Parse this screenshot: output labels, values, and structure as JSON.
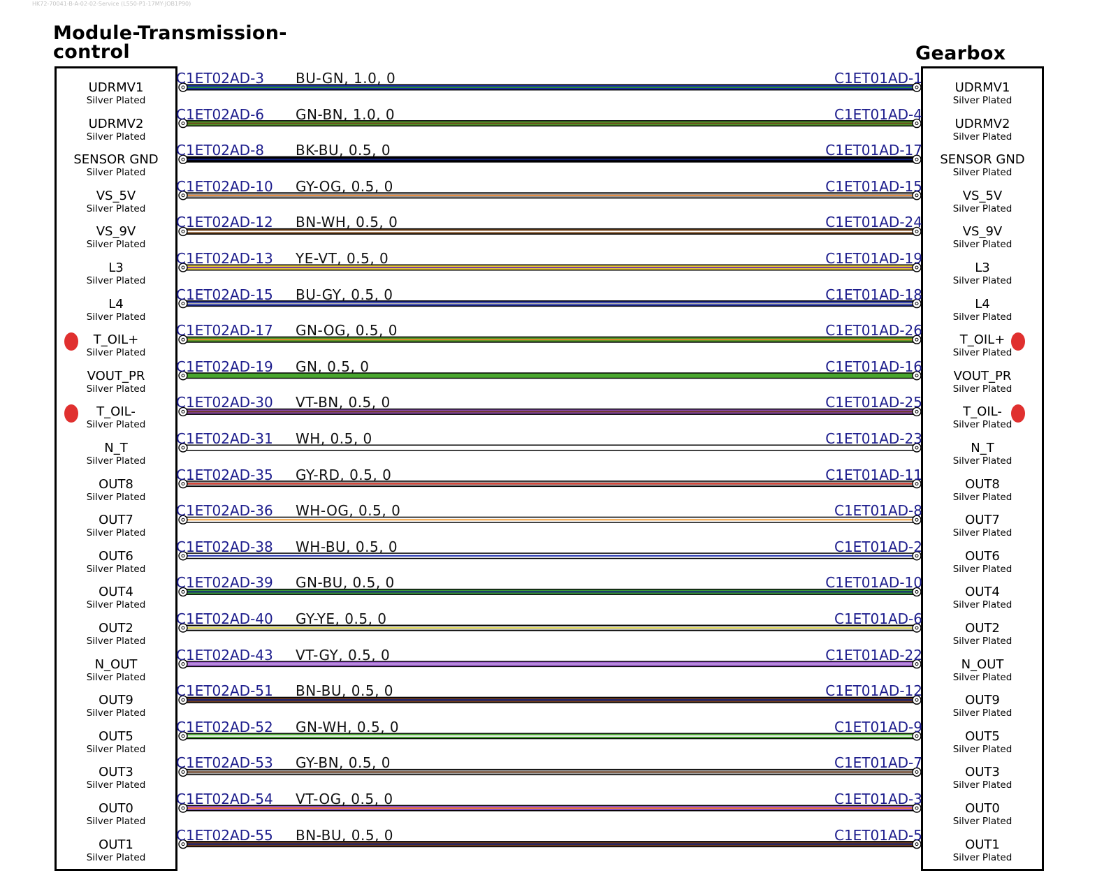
{
  "doc_header": "HK72-70041-B-A-02-02-Service (L550-P1-17MY-JOB1P90)",
  "left_connector": {
    "title": "Module-Transmission-control"
  },
  "right_connector": {
    "title": "Gearbox"
  },
  "plating": "Silver Plated",
  "wires": [
    {
      "pin": "UDRMV1",
      "left_cavity": "C1ET02AD-3",
      "spec": "BU-GN,  1.0,  0",
      "right_cavity": "C1ET01AD-1",
      "colors": [
        "#1a2ea0",
        "#2a8a3a"
      ],
      "stripe": "#2a8a3a"
    },
    {
      "pin": "UDRMV2",
      "left_cavity": "C1ET02AD-6",
      "spec": "GN-BN,  1.0,  0",
      "right_cavity": "C1ET01AD-4",
      "colors": [
        "#4f9a2a",
        "#6b4a1e"
      ],
      "stripe": "#6b4a1e"
    },
    {
      "pin": "SENSOR GND",
      "left_cavity": "C1ET02AD-8",
      "spec": "BK-BU,  0.5,  0",
      "right_cavity": "C1ET01AD-17",
      "colors": [
        "#000000",
        "#13207a"
      ],
      "stripe": "#13207a"
    },
    {
      "pin": "VS_5V",
      "left_cavity": "C1ET02AD-10",
      "spec": "GY-OG,  0.5,  0",
      "right_cavity": "C1ET01AD-15",
      "colors": [
        "#9a9a9a",
        "#e98a3a"
      ],
      "stripe": "#e98a3a"
    },
    {
      "pin": "VS_9V",
      "left_cavity": "C1ET02AD-12",
      "spec": "BN-WH,  0.5,  0",
      "right_cavity": "C1ET01AD-24",
      "colors": [
        "#7a4a1e",
        "#ffffff"
      ],
      "stripe": "#ffffff"
    },
    {
      "pin": "L3",
      "left_cavity": "C1ET02AD-13",
      "spec": "YE-VT,  0.5,  0",
      "right_cavity": "C1ET01AD-19",
      "colors": [
        "#e6c93a",
        "#7a3aa0"
      ],
      "stripe": "#7a3aa0"
    },
    {
      "pin": "L4",
      "left_cavity": "C1ET02AD-15",
      "spec": "BU-GY,  0.5,  0",
      "right_cavity": "C1ET01AD-18",
      "colors": [
        "#2030b0",
        "#b0b0b0"
      ],
      "stripe": "#b0b0b0"
    },
    {
      "pin": "T_OIL+",
      "left_cavity": "C1ET02AD-17",
      "spec": "GN-OG,  0.5,  0",
      "right_cavity": "C1ET01AD-26",
      "colors": [
        "#4f9a2a",
        "#e08a2a"
      ],
      "stripe": "#e08a2a"
    },
    {
      "pin": "VOUT_PR",
      "left_cavity": "C1ET02AD-19",
      "spec": "GN,  0.5,  0",
      "right_cavity": "C1ET01AD-16",
      "colors": [
        "#49a62e",
        "#49a62e"
      ],
      "stripe": "#49a62e"
    },
    {
      "pin": "T_OIL-",
      "left_cavity": "C1ET02AD-30",
      "spec": "VT-BN,  0.5,  0",
      "right_cavity": "C1ET01AD-25",
      "colors": [
        "#8a4ab0",
        "#6b3a1e"
      ],
      "stripe": "#6b3a1e"
    },
    {
      "pin": "N_T",
      "left_cavity": "C1ET02AD-31",
      "spec": "WH,  0.5,  0",
      "right_cavity": "C1ET01AD-23",
      "colors": [
        "#ffffff",
        "#ffffff"
      ],
      "stripe": "#ffffff"
    },
    {
      "pin": "OUT8",
      "left_cavity": "C1ET02AD-35",
      "spec": "GY-RD,  0.5,  0",
      "right_cavity": "C1ET01AD-11",
      "colors": [
        "#a0a0a0",
        "#e03a2a"
      ],
      "stripe": "#e03a2a"
    },
    {
      "pin": "OUT7",
      "left_cavity": "C1ET02AD-36",
      "spec": "WH-OG,  0.5,  0",
      "right_cavity": "C1ET01AD-8",
      "colors": [
        "#ffffff",
        "#f0a040"
      ],
      "stripe": "#f0a040"
    },
    {
      "pin": "OUT6",
      "left_cavity": "C1ET02AD-38",
      "spec": "WH-BU,  0.5,  0",
      "right_cavity": "C1ET01AD-2",
      "colors": [
        "#ffffff",
        "#2030b0"
      ],
      "stripe": "#2030b0"
    },
    {
      "pin": "OUT4",
      "left_cavity": "C1ET02AD-39",
      "spec": "GN-BU,  0.5,  0",
      "right_cavity": "C1ET01AD-10",
      "colors": [
        "#3a9a3a",
        "#13207a"
      ],
      "stripe": "#13207a"
    },
    {
      "pin": "OUT2",
      "left_cavity": "C1ET02AD-40",
      "spec": "GY-YE,  0.5,  0",
      "right_cavity": "C1ET01AD-6",
      "colors": [
        "#b0b0b0",
        "#e8e060"
      ],
      "stripe": "#e8e060"
    },
    {
      "pin": "N_OUT",
      "left_cavity": "C1ET02AD-43",
      "spec": "VT-GY,  0.5,  0",
      "right_cavity": "C1ET01AD-22",
      "colors": [
        "#a060d0",
        "#c0a0e0"
      ],
      "stripe": "#c0a0e0"
    },
    {
      "pin": "OUT9",
      "left_cavity": "C1ET02AD-51",
      "spec": "BN-BU,  0.5,  0",
      "right_cavity": "C1ET01AD-12",
      "colors": [
        "#6b3a1e",
        "#13207a"
      ],
      "stripe": "#13207a"
    },
    {
      "pin": "OUT5",
      "left_cavity": "C1ET02AD-52",
      "spec": "GN-WH,  0.5,  0",
      "right_cavity": "C1ET01AD-9",
      "colors": [
        "#4fa83a",
        "#ffffff"
      ],
      "stripe": "#ffffff"
    },
    {
      "pin": "OUT3",
      "left_cavity": "C1ET02AD-53",
      "spec": "GY-BN,  0.5,  0",
      "right_cavity": "C1ET01AD-7",
      "colors": [
        "#a0a0a0",
        "#7a4a2a"
      ],
      "stripe": "#7a4a2a"
    },
    {
      "pin": "OUT0",
      "left_cavity": "C1ET02AD-54",
      "spec": "VT-OG,  0.5,  0",
      "right_cavity": "C1ET01AD-3",
      "colors": [
        "#9050c0",
        "#e87a3a"
      ],
      "stripe": "#e87a3a"
    },
    {
      "pin": "OUT1",
      "left_cavity": "C1ET02AD-55",
      "spec": "BN-BU,  0.5,  0",
      "right_cavity": "C1ET01AD-5",
      "colors": [
        "#6b3a1e",
        "#13207a"
      ],
      "stripe": "#13207a"
    }
  ],
  "highlighted_pins": [
    "T_OIL+",
    "T_OIL-"
  ],
  "highlight_color": "#e0302f",
  "label_color": "#1c1c8c"
}
